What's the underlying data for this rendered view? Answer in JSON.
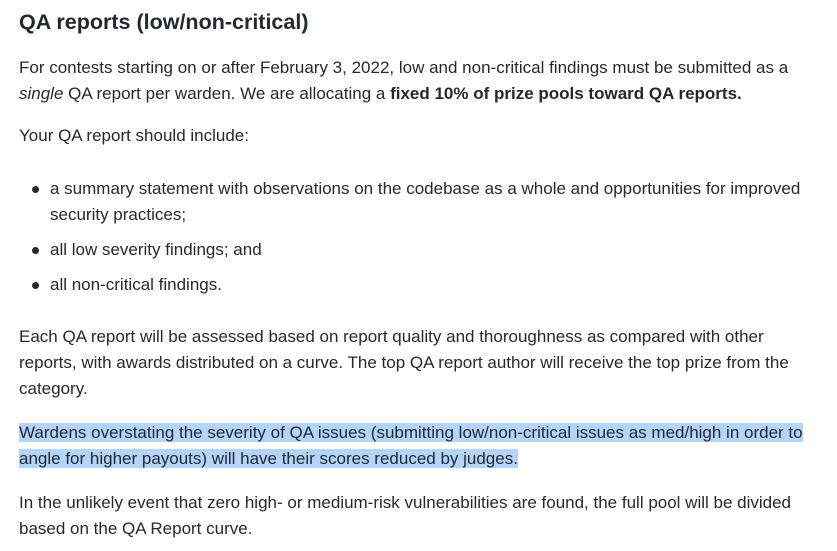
{
  "heading": "QA reports (low/non-critical)",
  "intro": {
    "part1": "For contests starting on or after February 3, 2022, low and non-critical findings must be submitted as a ",
    "single": "single",
    "part2": " QA report per warden. We are allocating a ",
    "bold": "fixed 10% of prize pools toward QA reports."
  },
  "include_label": "Your QA report should include:",
  "include_items": [
    "a summary statement with observations on the codebase as a whole and opportunities for improved security practices;",
    "all low severity findings; and",
    "all non-critical findings."
  ],
  "assessment": "Each QA report will be assessed based on report quality and thoroughness as compared with other reports, with awards distributed on a curve. The top QA report author will receive the top prize from the category.",
  "wardens_warning": "Wardens overstating the severity of QA issues (submitting low/non-critical issues as med/high in order to angle for higher payouts) will have their scores reduced by judges.",
  "unlikely_event": "In the unlikely event that zero high- or medium-risk vulnerabilities are found, the full pool will be divided based on the QA Report curve.",
  "colors": {
    "text": "#24292f",
    "selection_highlight": "#b3d4fc"
  }
}
